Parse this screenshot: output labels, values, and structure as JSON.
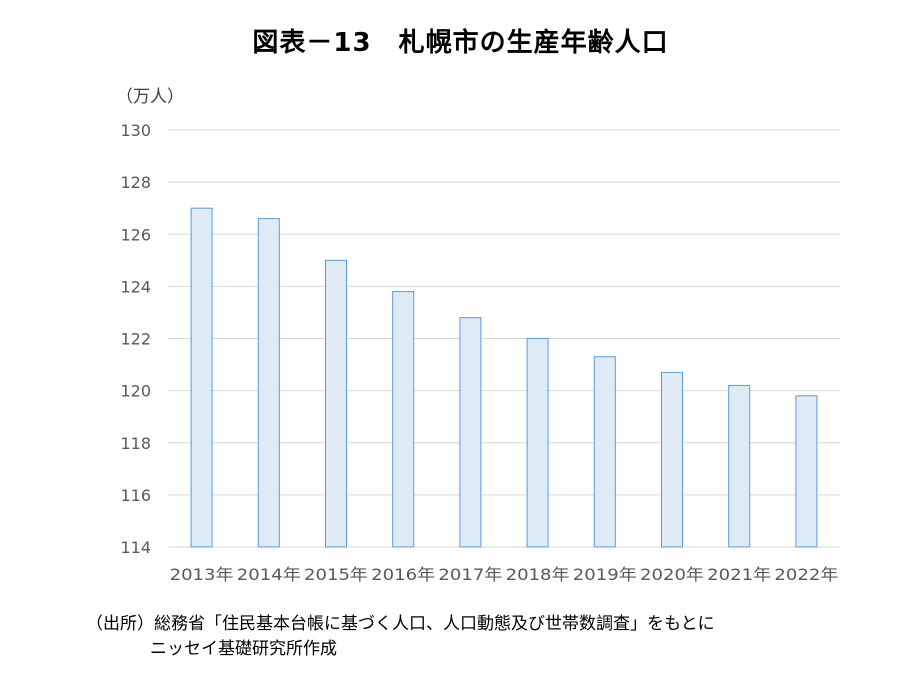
{
  "chart_data": {
    "type": "bar",
    "title": "図表－13　札幌市の生産年齢人口",
    "ylabel": "（万人）",
    "xlabel": "",
    "categories": [
      "2013年",
      "2014年",
      "2015年",
      "2016年",
      "2017年",
      "2018年",
      "2019年",
      "2020年",
      "2021年",
      "2022年"
    ],
    "values": [
      127.0,
      126.6,
      125.0,
      123.8,
      122.8,
      122.0,
      121.3,
      120.7,
      120.2,
      119.8
    ],
    "ylim": [
      114,
      130
    ],
    "yticks": [
      114,
      116,
      118,
      120,
      122,
      124,
      126,
      128,
      130
    ],
    "grid": true,
    "colors": {
      "bar_fill": "#deeaf6",
      "bar_stroke": "#5b9bd5",
      "grid": "#d9d9d9",
      "tick_text": "#595959"
    }
  },
  "source": {
    "line1": "（出所）総務省「住民基本台帳に基づく人口、人口動態及び世帯数調査」をもとに",
    "line2": "ニッセイ基礎研究所作成"
  }
}
